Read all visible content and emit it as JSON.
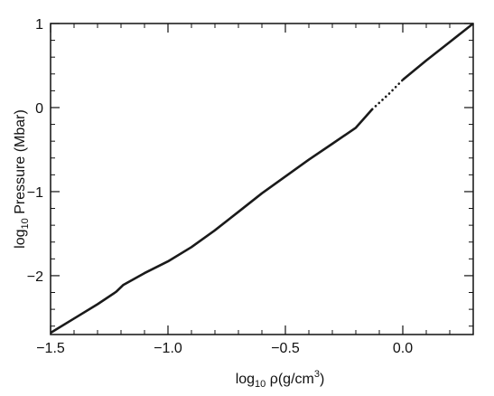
{
  "chart_data": {
    "type": "line",
    "title": "",
    "xlabel": {
      "prefix": "log",
      "subscript": "10",
      "main": " ρ(g/cm",
      "superscript": "3",
      "suffix": ")"
    },
    "ylabel": {
      "prefix": "log",
      "subscript": "10",
      "main": " Pressure (Mbar)"
    },
    "xlim": [
      -1.5,
      0.3
    ],
    "ylim": [
      -2.7,
      1.0
    ],
    "x_ticks": [
      -1.5,
      -1.0,
      -0.5,
      0.0
    ],
    "x_tick_labels": [
      "−1.5",
      "−1.0",
      "−0.5",
      "0.0"
    ],
    "y_ticks": [
      -2,
      -1,
      0,
      1
    ],
    "y_tick_labels": [
      "−2",
      "−1",
      "0",
      "1"
    ],
    "x_minor_step": 0.1,
    "y_minor_step": 0.2,
    "grid": false,
    "legend": "none",
    "line_color": "#1a1a1a",
    "series": [
      {
        "style": "solid",
        "x": [
          -1.5,
          -1.4,
          -1.3,
          -1.22,
          -1.19,
          -1.1,
          -1.0,
          -0.9,
          -0.8,
          -0.7,
          -0.6,
          -0.5,
          -0.4,
          -0.3,
          -0.2,
          -0.13
        ],
        "y": [
          -2.68,
          -2.51,
          -2.34,
          -2.19,
          -2.11,
          -1.97,
          -1.83,
          -1.66,
          -1.46,
          -1.24,
          -1.02,
          -0.82,
          -0.62,
          -0.43,
          -0.24,
          -0.02
        ]
      },
      {
        "style": "dotted",
        "x": [
          -0.13,
          -0.06,
          0.0
        ],
        "y": [
          -0.02,
          0.16,
          0.33
        ]
      },
      {
        "style": "solid",
        "x": [
          0.0,
          0.1,
          0.2,
          0.3
        ],
        "y": [
          0.33,
          0.56,
          0.78,
          1.0
        ]
      }
    ]
  }
}
